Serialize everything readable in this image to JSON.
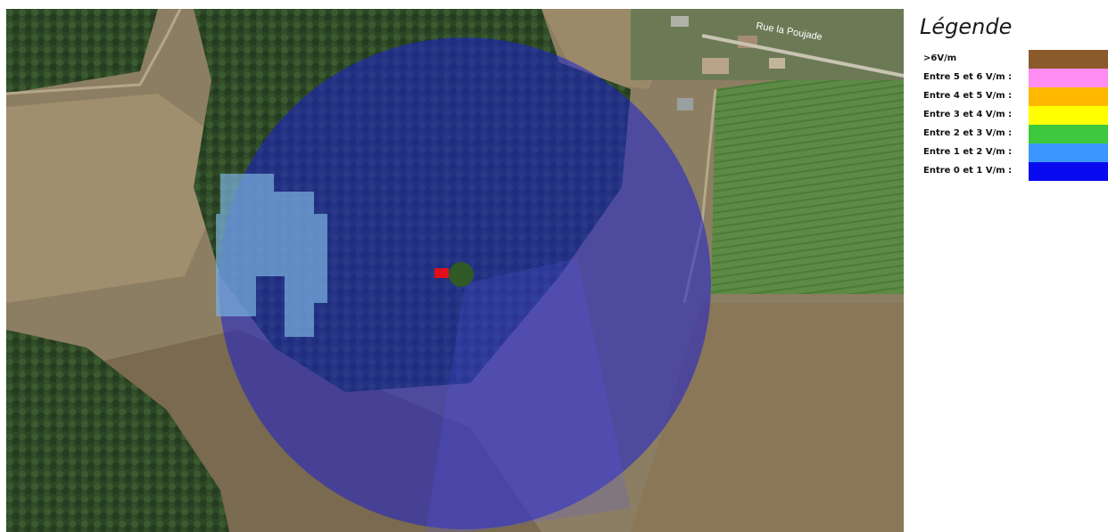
{
  "map": {
    "road_label": "Rue la Poujade",
    "coverage_class": "Entre 0 et 1 V/m :",
    "nearby_class": "Entre 1 et 2 V/m :",
    "antenna_icon": "red-antenna-marker"
  },
  "legend": {
    "title": "Légende",
    "items": [
      {
        "label": ">6V/m",
        "color": "#8B5A2B"
      },
      {
        "label": "Entre 5 et 6 V/m :",
        "color": "#FF8CF0"
      },
      {
        "label": "Entre 4 et 5 V/m :",
        "color": "#FFB800"
      },
      {
        "label": "Entre 3 et 4 V/m :",
        "color": "#FFFF00"
      },
      {
        "label": "Entre 2 et 3 V/m :",
        "color": "#3EC83E"
      },
      {
        "label": "Entre 1 et 2 V/m :",
        "color": "#3C96FF"
      },
      {
        "label": "Entre 0 et 1 V/m :",
        "color": "#0A0AF0"
      }
    ]
  },
  "colors": {
    "field": "#8a7a5e",
    "forest": "#2c4a25",
    "crop": "#4f7a3a",
    "coverage_blue": "#1f27c8",
    "coverage_light": "#6fa7d8"
  }
}
